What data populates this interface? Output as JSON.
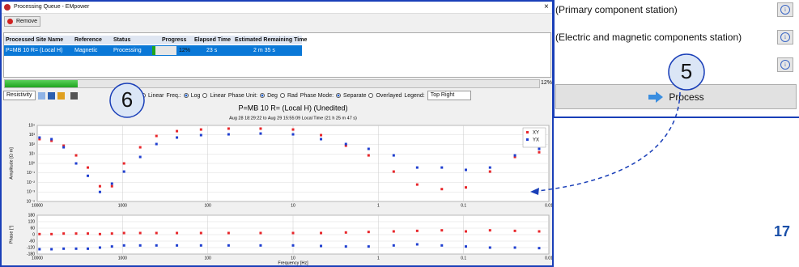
{
  "window": {
    "title": "Processing Queue - EMpower",
    "close": "×",
    "remove": "Remove"
  },
  "table": {
    "headers": [
      "Processed Site Name",
      "Reference",
      "Status",
      "Progress",
      "Elapsed Time",
      "Estimated Remaining Time"
    ],
    "rows": [
      [
        "P=MB 10 R= (Local H)",
        "Magnetic",
        "Processing",
        "12%",
        "23 s",
        "2 m 35 s"
      ]
    ]
  },
  "overall_progress": "12%",
  "plot_select": "Resistivity",
  "toolbar": [
    {
      "label": "Linear",
      "checked": false
    },
    {
      "label": "Freq.:"
    },
    {
      "label": "Log",
      "checked": true
    },
    {
      "label": "Linear",
      "checked": false
    },
    {
      "label": "Phase Unit:"
    },
    {
      "label": "Deg",
      "checked": true
    },
    {
      "label": "Rad",
      "checked": false
    },
    {
      "label": "Phase Mode:"
    },
    {
      "label": "Separate",
      "checked": true
    },
    {
      "label": "Overlayed",
      "checked": false
    },
    {
      "label": "Legend:"
    }
  ],
  "legend_select": "Top Right",
  "right_panel": {
    "rows": [
      "(Primary component station)",
      "(Electric and magnetic components station)"
    ],
    "button": "Process"
  },
  "callouts": [
    "6",
    "5"
  ],
  "page_number": "17",
  "chart_data": [
    {
      "type": "scatter",
      "title": "P=MB 10 R= (Local H) (Unedited)",
      "subtitle": "Aug 28 18:29:22 to Aug 29 15:55:09 Local Time (21 h 25 m 47 s)",
      "y_label": "Amplitude [Ω·m]",
      "xscale": "log",
      "yscale": "log",
      "grid": true,
      "legend": "top right",
      "x": [
        9400,
        6800,
        4900,
        3500,
        2550,
        1840,
        1330,
        960,
        620,
        400,
        230,
        120,
        57,
        24,
        10,
        4.7,
        2.4,
        1.3,
        0.66,
        0.35,
        0.18,
        0.094,
        0.049,
        0.025,
        0.013
      ],
      "xlim": [
        10000,
        0.01
      ],
      "xticks": [
        10000,
        1000,
        100,
        10,
        1,
        0.1,
        0.01
      ],
      "ylim": [
        0.0001,
        10000
      ],
      "yticks": [
        {
          "value": 10000,
          "label": "10⁴"
        },
        {
          "value": 1000,
          "label": "10³"
        },
        {
          "value": 100,
          "label": "10²"
        },
        {
          "value": 10,
          "label": "10¹"
        },
        {
          "value": 1,
          "label": "10⁰"
        },
        {
          "value": 0.1,
          "label": "10⁻¹"
        },
        {
          "value": 0.01,
          "label": "10⁻²"
        },
        {
          "value": 0.001,
          "label": "10⁻³"
        },
        {
          "value": 0.0001,
          "label": "10⁻⁴"
        }
      ],
      "series": [
        {
          "name": "XY",
          "color": "#e8262a",
          "values": [
            360,
            240,
            74,
            7,
            0.37,
            0.004,
            0.004,
            1,
            50,
            780,
            2500,
            3700,
            4600,
            4600,
            3700,
            950,
            74,
            7,
            0.14,
            0.006,
            0.002,
            0.003,
            0.14,
            4.8,
            15
          ]
        },
        {
          "name": "YX",
          "color": "#1f3fd0",
          "values": [
            530,
            360,
            50,
            1,
            0.05,
            0.001,
            0.0075,
            0.14,
            4.8,
            110,
            530,
            950,
            1150,
            1400,
            1150,
            360,
            110,
            34,
            7,
            0.37,
            0.37,
            0.21,
            0.37,
            7,
            34
          ]
        }
      ]
    },
    {
      "type": "scatter",
      "y_label": "Phase [°]",
      "x_label": "Frequency [Hz]",
      "xscale": "log",
      "grid": true,
      "x": [
        9400,
        6800,
        4900,
        3500,
        2550,
        1840,
        1330,
        960,
        620,
        400,
        230,
        120,
        57,
        24,
        10,
        4.7,
        2.4,
        1.3,
        0.66,
        0.35,
        0.18,
        0.094,
        0.049,
        0.025,
        0.013
      ],
      "xlim": [
        10000,
        0.01
      ],
      "xticks": [
        10000,
        1000,
        100,
        10,
        1,
        0.1,
        0.01
      ],
      "ylim": [
        -180,
        180
      ],
      "yticks": [
        180,
        120,
        60,
        0,
        -60,
        -120,
        -180
      ],
      "series": [
        {
          "color": "#e8262a",
          "values": [
            5,
            5,
            10,
            10,
            10,
            5,
            10,
            15,
            15,
            15,
            15,
            15,
            15,
            15,
            15,
            15,
            20,
            25,
            30,
            35,
            40,
            30,
            40,
            35,
            30
          ]
        },
        {
          "color": "#1f3fd0",
          "values": [
            -135,
            -135,
            -130,
            -130,
            -130,
            -120,
            -110,
            -100,
            -100,
            -100,
            -100,
            -100,
            -100,
            -100,
            -100,
            -105,
            -110,
            -110,
            -100,
            -90,
            -100,
            -110,
            -120,
            -120,
            -125
          ]
        }
      ]
    }
  ]
}
